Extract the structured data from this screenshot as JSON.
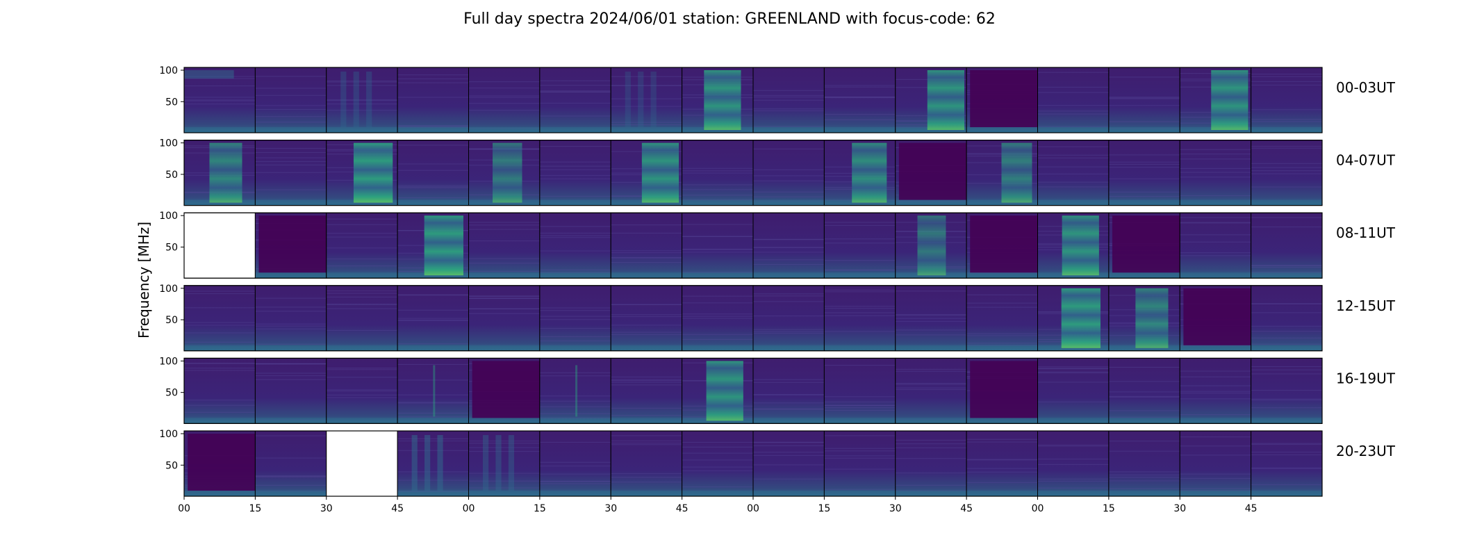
{
  "chart_data": {
    "type": "heatmap",
    "title": "Full day spectra 2024/06/01 station: GREENLAND with focus-code: 62",
    "ylabel": "Frequency [MHz]",
    "y_ticks": [
      100,
      50
    ],
    "x_ticks": [
      "00",
      "15",
      "30",
      "45",
      "00",
      "15",
      "30",
      "45",
      "00",
      "15",
      "30",
      "45",
      "00",
      "15",
      "30",
      "45"
    ],
    "panels_per_row": 16,
    "colormap": "viridis",
    "rows": [
      {
        "label": "00-03UT",
        "missing_panels": []
      },
      {
        "label": "04-07UT",
        "missing_panels": []
      },
      {
        "label": "08-11UT",
        "missing_panels": [
          0
        ]
      },
      {
        "label": "12-15UT",
        "missing_panels": []
      },
      {
        "label": "16-19UT",
        "missing_panels": []
      },
      {
        "label": "20-23UT",
        "missing_panels": [
          2
        ]
      }
    ],
    "burst_panels": [
      [
        [
          0,
          "fadeTop",
          0.5
        ],
        [
          2,
          "stripes",
          0.35
        ],
        [
          6,
          "stripes",
          0.3
        ],
        [
          7,
          "burst",
          0.9
        ],
        [
          10,
          "burst",
          0.9
        ],
        [
          11,
          "dark",
          0
        ],
        [
          14,
          "burst",
          0.9
        ]
      ],
      [
        [
          0,
          "burst",
          0.7
        ],
        [
          2,
          "burst",
          1.0
        ],
        [
          4,
          "burst",
          0.55
        ],
        [
          6,
          "burst",
          0.9
        ],
        [
          9,
          "burst",
          0.8
        ],
        [
          10,
          "dark",
          0
        ],
        [
          11,
          "burst",
          0.6
        ]
      ],
      [
        [
          1,
          "dark",
          0
        ],
        [
          3,
          "burst",
          1.0
        ],
        [
          10,
          "burst",
          0.5
        ],
        [
          11,
          "dark",
          0
        ],
        [
          12,
          "burst",
          0.9
        ],
        [
          13,
          "dark",
          0
        ]
      ],
      [
        [
          12,
          "burst",
          1.0
        ],
        [
          13,
          "burst",
          0.7
        ],
        [
          14,
          "dark",
          0
        ]
      ],
      [
        [
          3,
          "line",
          0.4
        ],
        [
          4,
          "dark",
          0
        ],
        [
          5,
          "line",
          0.4
        ],
        [
          7,
          "burst",
          0.9
        ],
        [
          11,
          "dark",
          0
        ]
      ],
      [
        [
          0,
          "dark",
          0
        ],
        [
          3,
          "stripes",
          0.5
        ],
        [
          4,
          "stripes",
          0.4
        ]
      ]
    ],
    "colors": {
      "low": "#440154",
      "base": "#3b2478",
      "mid": "#2f6b8e",
      "high": "#2bb07f",
      "peak": "#5ec962"
    }
  }
}
